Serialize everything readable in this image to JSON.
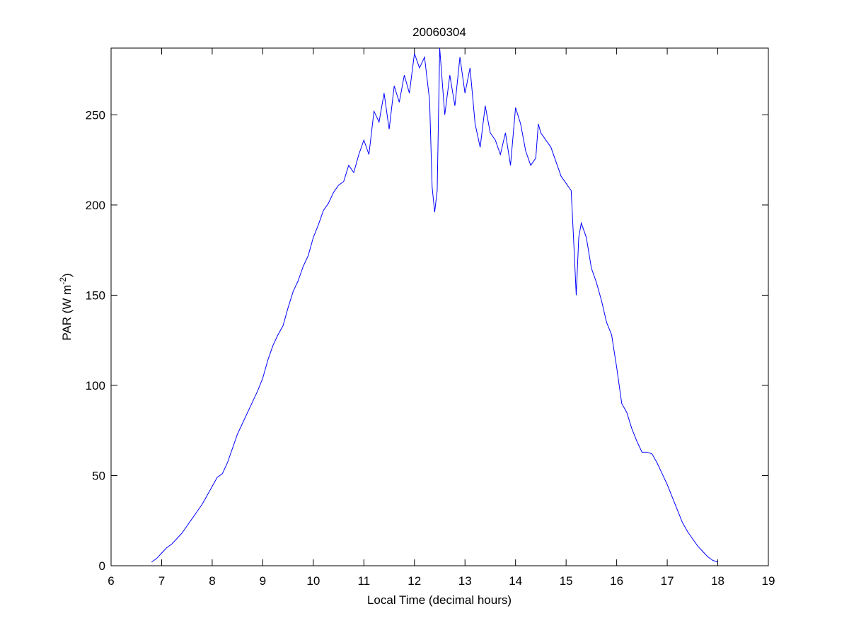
{
  "chart_data": {
    "type": "line",
    "title": "20060304",
    "xlabel": "Local Time (decimal hours)",
    "ylabel": {
      "text": "PAR (W m",
      "superscript": "-2",
      "suffix": ")"
    },
    "color": "#0000ff",
    "x": [
      6.8,
      6.9,
      7.0,
      7.1,
      7.2,
      7.3,
      7.4,
      7.5,
      7.6,
      7.7,
      7.8,
      7.9,
      8.0,
      8.1,
      8.2,
      8.3,
      8.4,
      8.5,
      8.6,
      8.7,
      8.8,
      8.9,
      9.0,
      9.1,
      9.2,
      9.3,
      9.4,
      9.5,
      9.6,
      9.7,
      9.8,
      9.9,
      10.0,
      10.1,
      10.2,
      10.3,
      10.4,
      10.5,
      10.6,
      10.7,
      10.8,
      10.9,
      11.0,
      11.1,
      11.2,
      11.3,
      11.4,
      11.5,
      11.6,
      11.7,
      11.8,
      11.9,
      12.0,
      12.1,
      12.2,
      12.3,
      12.35,
      12.4,
      12.45,
      12.5,
      12.6,
      12.7,
      12.8,
      12.9,
      13.0,
      13.1,
      13.2,
      13.3,
      13.4,
      13.5,
      13.6,
      13.7,
      13.8,
      13.9,
      14.0,
      14.1,
      14.2,
      14.3,
      14.4,
      14.45,
      14.5,
      14.6,
      14.7,
      14.8,
      14.9,
      15.0,
      15.1,
      15.15,
      15.2,
      15.25,
      15.3,
      15.4,
      15.5,
      15.6,
      15.7,
      15.8,
      15.9,
      16.0,
      16.1,
      16.2,
      16.3,
      16.4,
      16.5,
      16.6,
      16.7,
      16.8,
      16.9,
      17.0,
      17.1,
      17.2,
      17.3,
      17.4,
      17.5,
      17.6,
      17.7,
      17.8,
      17.9,
      18.0
    ],
    "values": [
      2,
      4,
      7,
      10,
      12,
      15,
      18,
      22,
      26,
      30,
      34,
      39,
      44,
      49,
      51,
      57,
      65,
      73,
      79,
      85,
      91,
      97,
      104,
      114,
      122,
      128,
      133,
      143,
      152,
      158,
      166,
      172,
      182,
      189,
      197,
      201,
      207,
      211,
      213,
      222,
      218,
      228,
      236,
      228,
      252,
      246,
      262,
      242,
      266,
      257,
      272,
      262,
      284,
      276,
      282,
      258,
      210,
      196,
      208,
      287,
      250,
      272,
      255,
      282,
      262,
      276,
      245,
      232,
      255,
      240,
      236,
      228,
      240,
      222,
      254,
      245,
      230,
      222,
      226,
      245,
      240,
      236,
      232,
      224,
      216,
      212,
      208,
      180,
      150,
      182,
      190,
      182,
      165,
      157,
      147,
      135,
      128,
      110,
      90,
      85,
      76,
      69,
      63,
      63,
      62,
      57,
      51,
      45,
      38,
      31,
      24,
      19,
      15,
      11,
      8,
      5,
      3,
      2
    ],
    "xlim": [
      6,
      19
    ],
    "xticks": [
      6,
      7,
      8,
      9,
      10,
      11,
      12,
      13,
      14,
      15,
      16,
      17,
      18,
      19
    ],
    "ylim": [
      0,
      287
    ],
    "yticks": [
      0,
      50,
      100,
      150,
      200,
      250
    ]
  }
}
